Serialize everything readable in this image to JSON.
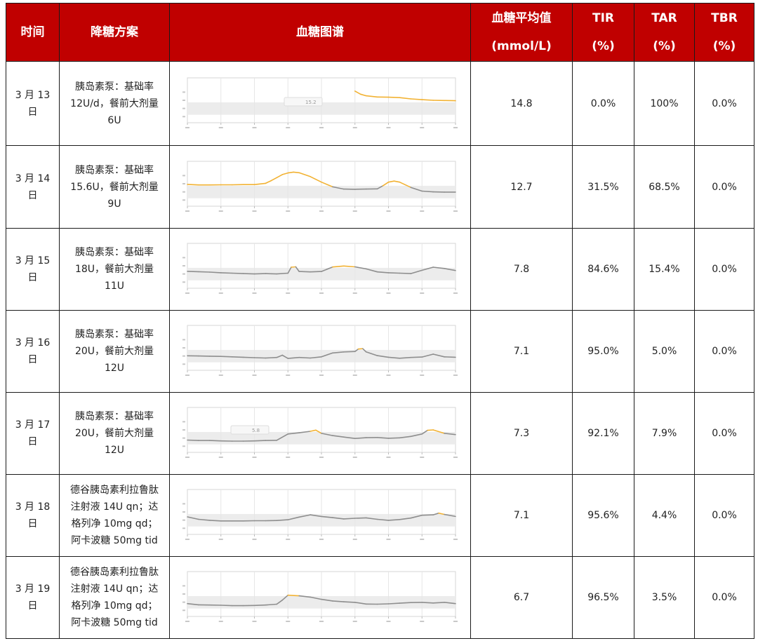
{
  "header": {
    "date": "时间",
    "plan": "降糖方案",
    "curve": "血糖图谱",
    "mean_line1": "血糖平均值",
    "mean_line2": "(mmol/L)",
    "tir_line1": "TIR",
    "tir_line2": "(%)",
    "tar_line1": "TAR",
    "tar_line2": "(%)",
    "tbr_line1": "TBR",
    "tbr_line2": "(%)"
  },
  "rows": [
    {
      "date_line1": "3 月 13",
      "date_line2": "日",
      "plan": [
        "胰岛素泵：基础率",
        "12U/d，餐前大剂量",
        "6U"
      ],
      "mean": "14.8",
      "tir": "0.0%",
      "tar": "100%",
      "tbr": "0.0%",
      "tooltip": "15.2"
    },
    {
      "date_line1": "3 月 14",
      "date_line2": "日",
      "plan": [
        "胰岛素泵：基础率",
        "15.6U，餐前大剂量",
        "9U"
      ],
      "mean": "12.7",
      "tir": "31.5%",
      "tar": "68.5%",
      "tbr": "0.0%"
    },
    {
      "date_line1": "3 月 15",
      "date_line2": "日",
      "plan": [
        "胰岛素泵：基础率",
        "18U，餐前大剂量",
        "11U"
      ],
      "mean": "7.8",
      "tir": "84.6%",
      "tar": "15.4%",
      "tbr": "0.0%"
    },
    {
      "date_line1": "3 月 16",
      "date_line2": "日",
      "plan": [
        "胰岛素泵：基础率",
        "20U，餐前大剂量",
        "12U"
      ],
      "mean": "7.1",
      "tir": "95.0%",
      "tar": "5.0%",
      "tbr": "0.0%"
    },
    {
      "date_line1": "3 月 17",
      "date_line2": "日",
      "plan": [
        "胰岛素泵：基础率",
        "20U，餐前大剂量",
        "12U"
      ],
      "mean": "7.3",
      "tir": "92.1%",
      "tar": "7.9%",
      "tbr": "0.0%",
      "tooltip": "5.8"
    },
    {
      "date_line1": "3 月 18",
      "date_line2": "日",
      "plan": [
        "德谷胰岛素利拉鲁肽",
        "注射液 14U qn；达",
        "格列净 10mg qd；",
        "阿卡波糖 50mg tid"
      ],
      "mean": "7.1",
      "tir": "95.6%",
      "tar": "4.4%",
      "tbr": "0.0%"
    },
    {
      "date_line1": "3 月 19",
      "date_line2": "日",
      "plan": [
        "德谷胰岛素利拉鲁肽",
        "注射液 14U qn；达",
        "格列净 10mg qd；",
        "阿卡波糖 50mg tid"
      ],
      "mean": "6.7",
      "tir": "96.5%",
      "tar": "3.5%",
      "tbr": "0.0%"
    }
  ],
  "chart_data": {
    "type": "line",
    "x_unit": "hour",
    "target_range": [
      3.9,
      10.0
    ],
    "ylim": [
      0,
      22
    ],
    "colors": {
      "in_range": "#8e8e8e",
      "above_range": "#f2b233",
      "band": "#ececec"
    },
    "series": [
      {
        "x": [
          15,
          15.5,
          16,
          17,
          18,
          19,
          20,
          21,
          22,
          23,
          24
        ],
        "y": [
          15.5,
          14.0,
          13.2,
          12.6,
          12.5,
          12.3,
          11.7,
          11.3,
          11.0,
          10.9,
          10.8
        ]
      },
      {
        "x": [
          0,
          1,
          2,
          3,
          4,
          5,
          6,
          7,
          7.5,
          8,
          8.5,
          9,
          9.5,
          10,
          11,
          12,
          13,
          14,
          15,
          16,
          17,
          17.5,
          18,
          18.5,
          19,
          20,
          21,
          22,
          23,
          24
        ],
        "y": [
          10.7,
          10.4,
          10.4,
          10.5,
          10.5,
          10.6,
          10.6,
          11.2,
          12.5,
          14.0,
          15.5,
          16.3,
          16.7,
          16.4,
          14.5,
          11.8,
          9.5,
          8.4,
          8.3,
          8.4,
          8.5,
          10.0,
          11.8,
          12.3,
          11.8,
          9.2,
          7.4,
          7.0,
          6.9,
          6.9
        ]
      },
      {
        "x": [
          0,
          1,
          2,
          3,
          4,
          5,
          6,
          7,
          8,
          9,
          9.3,
          9.7,
          10,
          11,
          12,
          12.5,
          13,
          14,
          15,
          16,
          17,
          18,
          19,
          20,
          21,
          22,
          23,
          24
        ],
        "y": [
          8.3,
          8.1,
          7.9,
          7.6,
          7.4,
          7.2,
          7.0,
          7.2,
          7.0,
          7.4,
          10.3,
          10.5,
          8.2,
          8.0,
          8.2,
          9.3,
          10.4,
          10.9,
          10.5,
          9.5,
          8.0,
          7.6,
          7.4,
          7.2,
          8.8,
          10.3,
          9.7,
          8.7
        ]
      },
      {
        "x": [
          0,
          1,
          2,
          3,
          4,
          5,
          6,
          7,
          8,
          8.5,
          9,
          10,
          11,
          12,
          13,
          14,
          15,
          15.3,
          15.7,
          16,
          17,
          18,
          19,
          20,
          21,
          22,
          23,
          24
        ],
        "y": [
          7.1,
          7.0,
          6.9,
          6.8,
          6.6,
          6.4,
          6.2,
          6.0,
          6.3,
          7.4,
          5.8,
          6.3,
          6.0,
          6.6,
          8.5,
          9.0,
          9.2,
          10.4,
          10.6,
          9.0,
          7.2,
          6.4,
          5.9,
          6.3,
          6.5,
          7.9,
          6.6,
          6.4
        ]
      },
      {
        "x": [
          0,
          1,
          2,
          3,
          4,
          5,
          6,
          7,
          8,
          9,
          10,
          11,
          11.5,
          12,
          13,
          14,
          15,
          16,
          17,
          18,
          19,
          20,
          21,
          21.5,
          22,
          23,
          24
        ],
        "y": [
          6.0,
          5.8,
          5.8,
          5.6,
          5.5,
          5.5,
          5.6,
          5.8,
          5.9,
          9.0,
          9.6,
          10.3,
          10.9,
          9.3,
          8.2,
          7.5,
          6.8,
          7.2,
          7.3,
          6.9,
          7.1,
          7.8,
          9.0,
          10.8,
          11.0,
          9.3,
          8.7
        ]
      },
      {
        "x": [
          0,
          1,
          2,
          3,
          4,
          5,
          6,
          7,
          8,
          9,
          10,
          11,
          12,
          13,
          14,
          15,
          16,
          17,
          18,
          19,
          20,
          21,
          22,
          22.5,
          23,
          24
        ],
        "y": [
          8.6,
          7.4,
          6.9,
          6.6,
          6.6,
          6.6,
          6.7,
          6.7,
          6.8,
          7.2,
          8.5,
          9.6,
          8.8,
          8.2,
          7.6,
          7.9,
          8.1,
          7.4,
          6.9,
          7.3,
          8.0,
          9.4,
          9.6,
          10.4,
          9.8,
          8.8
        ]
      },
      {
        "x": [
          0,
          1,
          2,
          3,
          4,
          5,
          6,
          7,
          8,
          8.5,
          9,
          10,
          11,
          12,
          13,
          14,
          15,
          16,
          17,
          18,
          19,
          20,
          21,
          22,
          23,
          24
        ],
        "y": [
          6.3,
          5.7,
          5.6,
          5.5,
          5.3,
          5.3,
          5.4,
          5.6,
          6.0,
          8.0,
          10.4,
          10.1,
          9.5,
          8.4,
          7.6,
          7.2,
          6.9,
          6.1,
          6.0,
          6.2,
          6.5,
          6.8,
          6.9,
          6.6,
          6.9,
          6.3
        ]
      }
    ]
  }
}
